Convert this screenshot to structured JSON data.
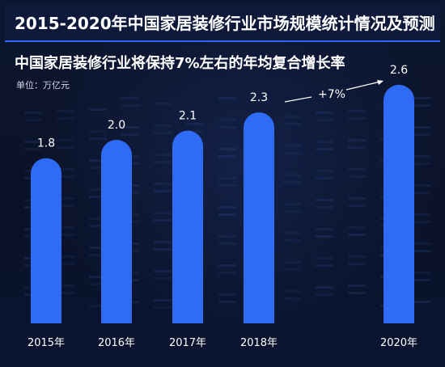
{
  "header": {
    "title": "2015-2020年中国家居装修行业市场规模统计情况及预测",
    "subtitle": "中国家居装修行业将保持7%左右的年均复合增长率",
    "unit": "单位：万亿元"
  },
  "colors": {
    "bar": "#2f6bf5",
    "title_band": "#0f1a3a",
    "accent": "#2b66ff",
    "text": "#ffffff"
  },
  "chart_data": {
    "type": "bar",
    "categories": [
      "2015年",
      "2016年",
      "2017年",
      "2018年",
      "2020年"
    ],
    "values": [
      1.8,
      2.0,
      2.1,
      2.3,
      2.6
    ],
    "value_labels": [
      "1.8",
      "2.0",
      "2.1",
      "2.3",
      "2.6"
    ],
    "annotation": "+7%",
    "grid": false,
    "legend": "none"
  }
}
